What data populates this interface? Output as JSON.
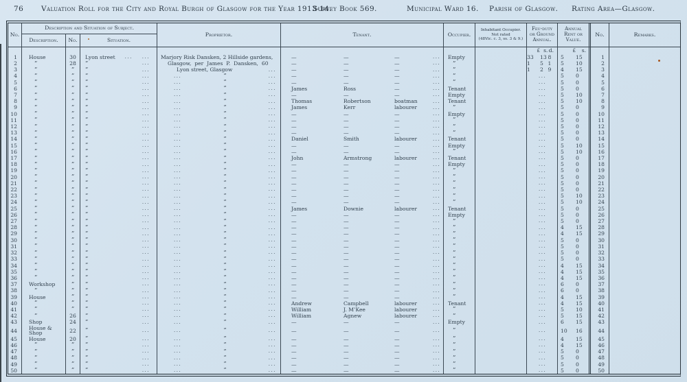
{
  "header": {
    "page_number": "76",
    "title": "Valuation Roll for the City and Royal Burgh of Glasgow for the Year 1913-14.",
    "survey": "Survey Book 569.",
    "ward": "Municipal Ward 16.",
    "parish": "Parish of Glasgow.",
    "rating": "Rating Area—Glasgow."
  },
  "glyphs": {
    "ditto": "”",
    "dash": "—",
    "dots": "..."
  },
  "colors": {
    "paper": "#d3e2ee",
    "ink": "#2e3d49",
    "rule": "#3a4752",
    "speck": "#a8571e"
  },
  "table": {
    "headers": {
      "no": "No.",
      "desc_group": "Description and Situation of Subject.",
      "desc": "Description.",
      "num": "No.",
      "situation": "Situation.",
      "proprietor": "Proprietor.",
      "tenant": "Tenant.",
      "occupier": "Occupier.",
      "inhabitant_line1": "Inhabitant Occupier.",
      "inhabitant_line2": "Not rated",
      "inhabitant_line3": "(48Vic. c. 3, ss. 3 & 9.)",
      "feu_line1": "Feu-duty",
      "feu_line2": "or Ground",
      "feu_line3": "Annual.",
      "rent_line1": "Annual",
      "rent_line2": "Rent or",
      "rent_line3": "Value.",
      "no2": "No.",
      "remarks": "Remarks.",
      "feu_units": [
        "£",
        "s.",
        "d."
      ],
      "rent_units": [
        "£",
        "s."
      ]
    },
    "street": "Lyon street",
    "proprietor_lines": [
      "Marjory Risk Dansken, 2 Hillside gardens,",
      "Glasgow, per James P. Dansken, 60",
      "Lyon street, Glasgow"
    ],
    "rows": [
      {
        "desc": "House",
        "num": "30",
        "sit": "main",
        "prop": "l1",
        "occ": "Empty",
        "feu": [
          "33",
          "13",
          "8"
        ],
        "rent": [
          "5",
          "15"
        ]
      },
      {
        "num": "28",
        "prop": "l2",
        "feu": [
          "1",
          "5",
          "1"
        ],
        "rent": [
          "5",
          "10"
        ]
      },
      {
        "prop": "l3",
        "feu": [
          "1",
          "2",
          "9"
        ],
        "rent": [
          "4",
          "15"
        ]
      },
      {
        "rent": [
          "5",
          "0"
        ]
      },
      {
        "rent": [
          "5",
          "0"
        ]
      },
      {
        "ten": [
          "James",
          "Ross",
          "—"
        ],
        "occ": "Tenant",
        "rent": [
          "5",
          "0"
        ]
      },
      {
        "occ": "Empty",
        "rent": [
          "5",
          "10"
        ]
      },
      {
        "ten": [
          "Thomas",
          "Robertson",
          "boatman"
        ],
        "occ": "Tenant",
        "rent": [
          "5",
          "10"
        ]
      },
      {
        "ten": [
          "James",
          "Kerr",
          "labourer"
        ],
        "rent": [
          "5",
          "0"
        ]
      },
      {
        "occ": "Empty",
        "rent": [
          "5",
          "0"
        ]
      },
      {
        "rent": [
          "5",
          "0"
        ]
      },
      {
        "rent": [
          "5",
          "0"
        ]
      },
      {
        "rent": [
          "5",
          "0"
        ]
      },
      {
        "ten": [
          "Daniel",
          "Smith",
          "labourer"
        ],
        "occ": "Tenant",
        "rent": [
          "5",
          "0"
        ]
      },
      {
        "occ": "Empty",
        "rent": [
          "5",
          "10"
        ]
      },
      {
        "rent": [
          "5",
          "10"
        ]
      },
      {
        "ten": [
          "John",
          "Armstrong",
          "labourer"
        ],
        "occ": "Tenant",
        "rent": [
          "5",
          "0"
        ]
      },
      {
        "occ": "Empty",
        "rent": [
          "5",
          "0"
        ]
      },
      {
        "rent": [
          "5",
          "0"
        ]
      },
      {
        "rent": [
          "5",
          "0"
        ]
      },
      {
        "rent": [
          "5",
          "0"
        ]
      },
      {
        "rent": [
          "5",
          "0"
        ]
      },
      {
        "rent": [
          "5",
          "10"
        ]
      },
      {
        "rent": [
          "5",
          "10"
        ]
      },
      {
        "ten": [
          "James",
          "Downie",
          "labourer"
        ],
        "occ": "Tenant",
        "rent": [
          "5",
          "0"
        ]
      },
      {
        "occ": "Empty",
        "rent": [
          "5",
          "0"
        ]
      },
      {
        "rent": [
          "5",
          "0"
        ]
      },
      {
        "rent": [
          "4",
          "15"
        ]
      },
      {
        "rent": [
          "4",
          "15"
        ]
      },
      {
        "rent": [
          "5",
          "0"
        ]
      },
      {
        "rent": [
          "5",
          "0"
        ]
      },
      {
        "rent": [
          "5",
          "0"
        ]
      },
      {
        "rent": [
          "5",
          "0"
        ]
      },
      {
        "rent": [
          "4",
          "15"
        ]
      },
      {
        "rent": [
          "4",
          "15"
        ]
      },
      {
        "rent": [
          "4",
          "15"
        ]
      },
      {
        "desc": "Workshop",
        "rent": [
          "6",
          "0"
        ]
      },
      {
        "rent": [
          "6",
          "0"
        ]
      },
      {
        "desc": "House",
        "rent": [
          "4",
          "15"
        ]
      },
      {
        "ten": [
          "Andrew",
          "Campbell",
          "labourer"
        ],
        "occ": "Tenant",
        "rent": [
          "4",
          "15"
        ]
      },
      {
        "ten": [
          "William",
          "J. M’Kee",
          "labourer"
        ],
        "rent": [
          "5",
          "10"
        ]
      },
      {
        "num": "26",
        "ten": [
          "William",
          "Agnew",
          "labourer"
        ],
        "rent": [
          "5",
          "15"
        ]
      },
      {
        "desc": "Shop",
        "num": "24",
        "occ": "Empty",
        "rent": [
          "6",
          "15"
        ]
      },
      {
        "desc": "House & Shop",
        "num": "22",
        "rent": [
          "10",
          "16"
        ]
      },
      {
        "desc": "House",
        "num": "20",
        "rent": [
          "4",
          "15"
        ]
      },
      {
        "rent": [
          "4",
          "15"
        ]
      },
      {
        "rent": [
          "5",
          "0"
        ]
      },
      {
        "rent": [
          "5",
          "0"
        ]
      },
      {
        "rent": [
          "5",
          "0"
        ]
      },
      {
        "rent": [
          "5",
          "0"
        ]
      }
    ]
  }
}
